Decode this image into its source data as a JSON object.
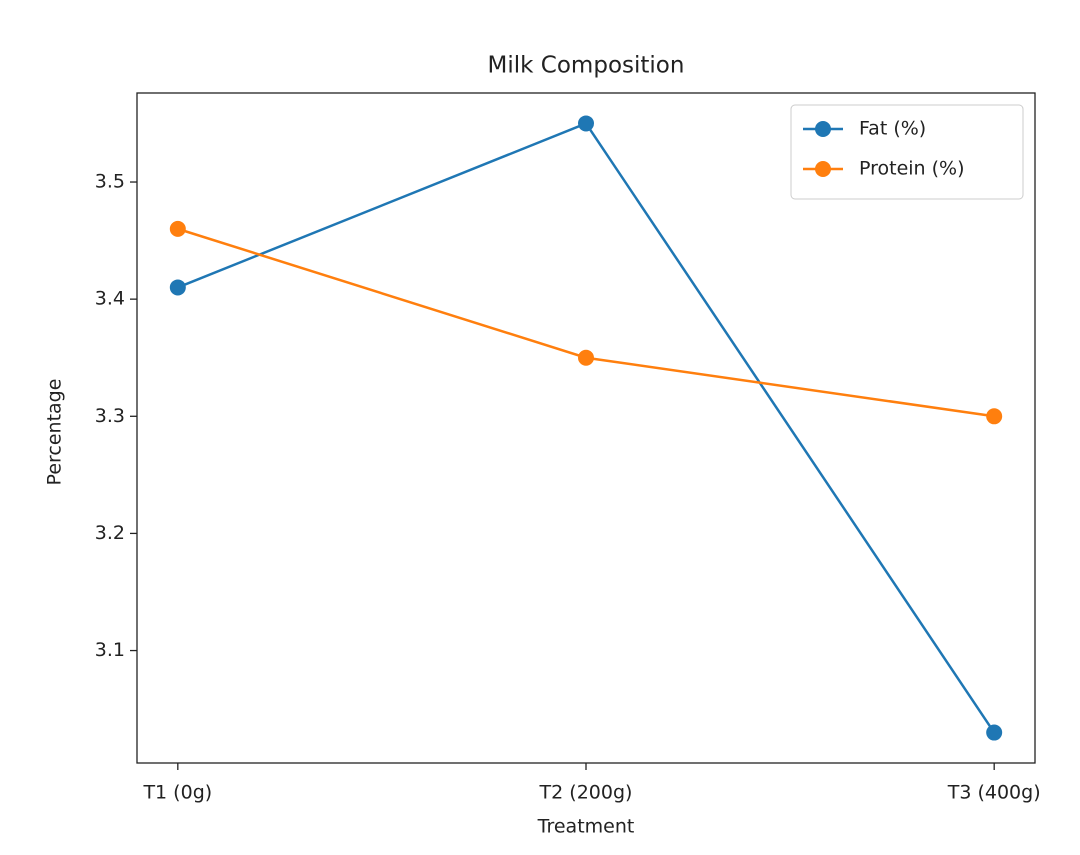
{
  "chart_data": {
    "type": "line",
    "title": "Milk Composition",
    "x_label": "Treatment",
    "y_label": "Percentage",
    "categories": [
      "T1 (0g)",
      "T2 (200g)",
      "T3 (400g)"
    ],
    "series": [
      {
        "name": "Fat (%)",
        "color": "#1f77b4",
        "values": [
          3.41,
          3.55,
          3.03
        ]
      },
      {
        "name": "Protein (%)",
        "color": "#ff7f0e",
        "values": [
          3.46,
          3.35,
          3.3
        ]
      }
    ],
    "ylim": [
      3.004,
      3.576
    ],
    "yticks": [
      3.1,
      3.2,
      3.3,
      3.4,
      3.5
    ],
    "grid": false,
    "legend": "upper right"
  }
}
